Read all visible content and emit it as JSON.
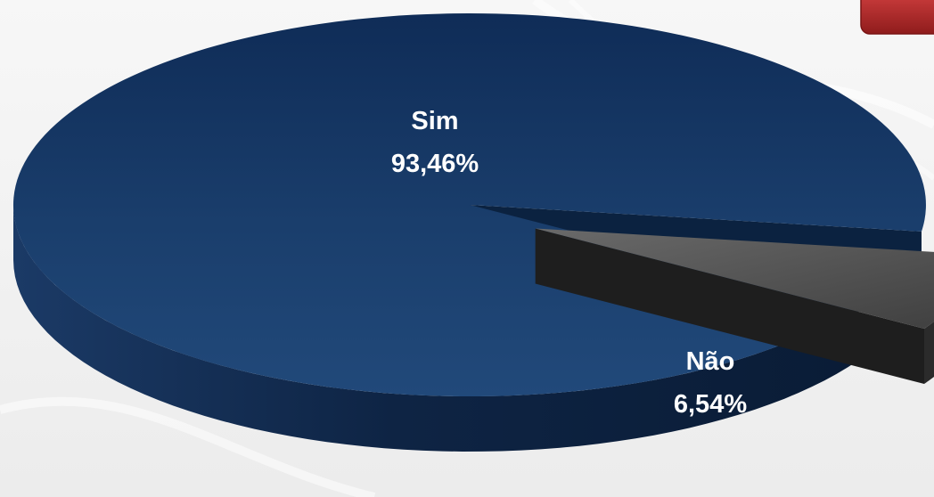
{
  "chart_data": {
    "type": "pie",
    "style": "3d-exploded",
    "slices": [
      {
        "label": "Sim",
        "value_label": "93,46%",
        "value": 93.46,
        "color": "#1b3f6f",
        "exploded": false
      },
      {
        "label": "Não",
        "value_label": "6,54%",
        "value": 6.54,
        "color": "#4a4a4a",
        "exploded": true
      }
    ],
    "title": "",
    "legend": "none"
  },
  "colors": {
    "background": "#f2f2f2",
    "sim_top": "#1b3f6f",
    "sim_side": "#0f2848",
    "nao_top": "#4a4a4a",
    "nao_side": "#2a2a2a",
    "corner_tab": "#b22a2a"
  }
}
